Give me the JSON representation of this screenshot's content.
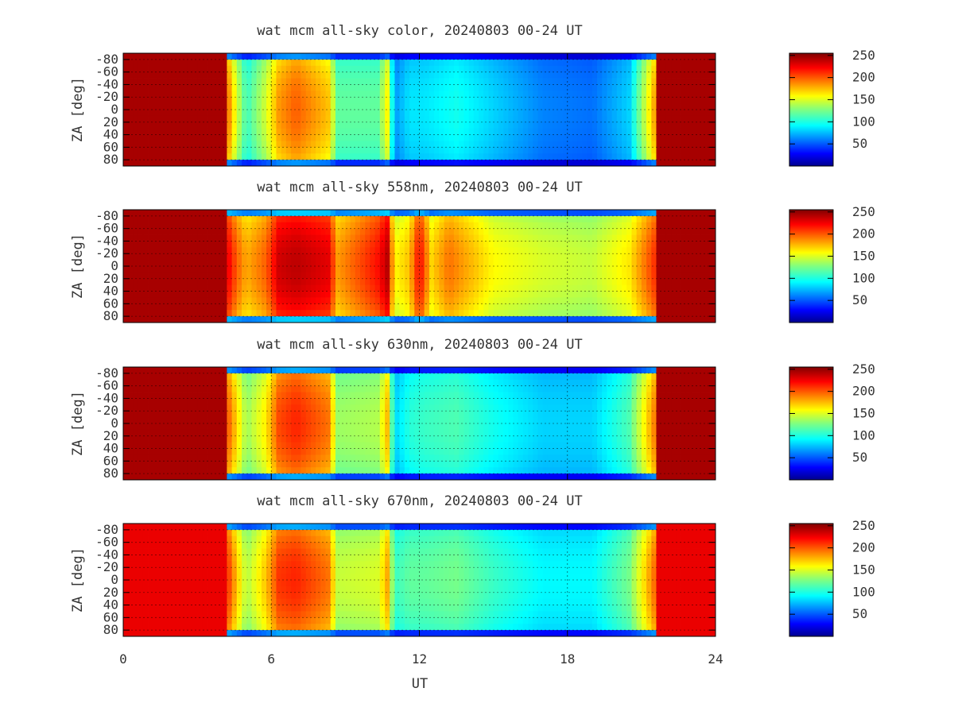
{
  "chart_data": {
    "type": "heatmap",
    "xlabel": "UT",
    "ylabel": "ZA [deg]",
    "xlim": [
      0,
      24
    ],
    "xticks": [
      "0",
      "6",
      "12",
      "18",
      "24"
    ],
    "ylim": [
      -90,
      90
    ],
    "yticks": [
      "-80",
      "-60",
      "-40",
      "-20",
      "0",
      "20",
      "40",
      "60",
      "80"
    ],
    "colorbar": {
      "range": [
        0,
        255
      ],
      "ticks": [
        "250",
        "200",
        "150",
        "100",
        "50"
      ],
      "colormap": "jet"
    },
    "grid": true,
    "panels": [
      {
        "title": "wat mcm all-sky color, 20240803 00-24 UT",
        "night_start_ut": 4.2,
        "night_end_ut": 21.6,
        "day_value": 245,
        "night_profile": [
          [
            4.2,
            200
          ],
          [
            4.6,
            150
          ],
          [
            5.0,
            110
          ],
          [
            5.8,
            150
          ],
          [
            6.3,
            185
          ],
          [
            7.0,
            200
          ],
          [
            8.3,
            175
          ],
          [
            8.7,
            120
          ],
          [
            10.3,
            120
          ],
          [
            10.7,
            160
          ],
          [
            11.0,
            70
          ],
          [
            11.6,
            90
          ],
          [
            12.2,
            90
          ],
          [
            13.5,
            100
          ],
          [
            15.0,
            85
          ],
          [
            17.0,
            65
          ],
          [
            19.0,
            60
          ],
          [
            20.5,
            85
          ],
          [
            21.5,
            180
          ]
        ]
      },
      {
        "title": "wat mcm all-sky 558nm, 20240803 00-24 UT",
        "night_start_ut": 4.2,
        "night_end_ut": 21.6,
        "day_value": 245,
        "night_profile": [
          [
            4.2,
            230
          ],
          [
            4.6,
            200
          ],
          [
            5.0,
            180
          ],
          [
            5.8,
            200
          ],
          [
            6.3,
            235
          ],
          [
            7.0,
            240
          ],
          [
            8.3,
            230
          ],
          [
            8.7,
            185
          ],
          [
            10.3,
            220
          ],
          [
            10.7,
            240
          ],
          [
            11.0,
            160
          ],
          [
            11.6,
            175
          ],
          [
            12.0,
            225
          ],
          [
            12.5,
            170
          ],
          [
            13.2,
            195
          ],
          [
            15.0,
            160
          ],
          [
            17.0,
            150
          ],
          [
            19.0,
            145
          ],
          [
            20.5,
            165
          ],
          [
            21.5,
            210
          ]
        ]
      },
      {
        "title": "wat mcm all-sky 630nm, 20240803 00-24 UT",
        "night_start_ut": 4.2,
        "night_end_ut": 21.6,
        "day_value": 245,
        "night_profile": [
          [
            4.2,
            205
          ],
          [
            4.6,
            170
          ],
          [
            5.0,
            135
          ],
          [
            5.8,
            165
          ],
          [
            6.3,
            205
          ],
          [
            7.0,
            215
          ],
          [
            8.3,
            195
          ],
          [
            8.7,
            135
          ],
          [
            10.3,
            140
          ],
          [
            10.7,
            175
          ],
          [
            11.0,
            85
          ],
          [
            11.6,
            105
          ],
          [
            12.2,
            110
          ],
          [
            13.5,
            115
          ],
          [
            15.0,
            100
          ],
          [
            17.0,
            85
          ],
          [
            19.0,
            85
          ],
          [
            20.5,
            115
          ],
          [
            21.5,
            190
          ]
        ]
      },
      {
        "title": "wat mcm all-sky 670nm, 20240803 00-24 UT",
        "night_start_ut": 4.2,
        "night_end_ut": 21.6,
        "day_value": 228,
        "night_profile": [
          [
            4.2,
            215
          ],
          [
            4.6,
            175
          ],
          [
            5.0,
            140
          ],
          [
            5.8,
            175
          ],
          [
            6.3,
            210
          ],
          [
            7.0,
            215
          ],
          [
            8.3,
            195
          ],
          [
            8.7,
            145
          ],
          [
            10.3,
            150
          ],
          [
            10.7,
            180
          ],
          [
            11.0,
            110
          ],
          [
            11.6,
            120
          ],
          [
            12.2,
            120
          ],
          [
            13.5,
            125
          ],
          [
            15.0,
            110
          ],
          [
            17.0,
            95
          ],
          [
            19.0,
            95
          ],
          [
            20.5,
            125
          ],
          [
            21.5,
            195
          ]
        ]
      }
    ]
  }
}
